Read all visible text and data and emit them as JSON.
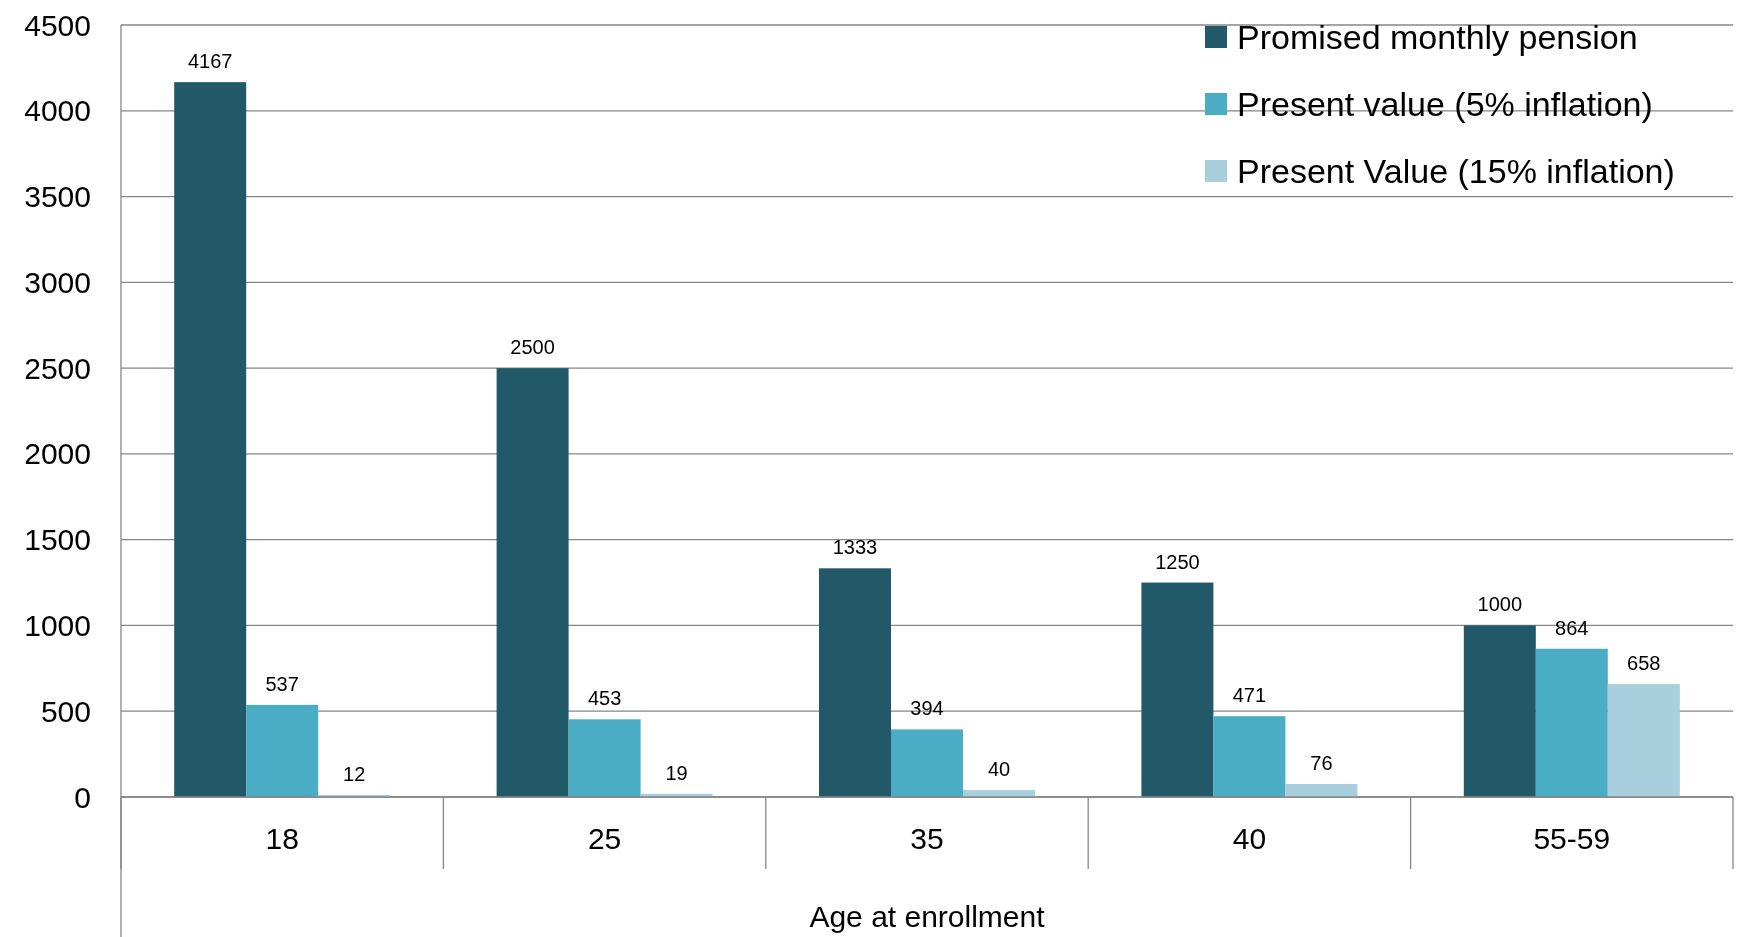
{
  "chart_data": {
    "type": "bar",
    "xlabel": "Age at enrollment",
    "categories": [
      "18",
      "25",
      "35",
      "40",
      "55-59"
    ],
    "series": [
      {
        "name": "Promised monthly pension",
        "color": "#215968",
        "values": [
          4167,
          2500,
          1333,
          1250,
          1000
        ]
      },
      {
        "name": "Present value (5% inflation)",
        "color": "#4bacc6",
        "values": [
          537,
          453,
          394,
          471,
          864
        ]
      },
      {
        "name": "Present Value (15% inflation)",
        "color": "#a9cedc",
        "values": [
          12,
          19,
          40,
          76,
          658
        ]
      }
    ],
    "ylim": [
      0,
      4500
    ],
    "yticks": [
      0,
      500,
      1000,
      1500,
      2000,
      2500,
      3000,
      3500,
      4000,
      4500
    ],
    "grid": "y",
    "legend": "top right",
    "data_labels": true
  }
}
